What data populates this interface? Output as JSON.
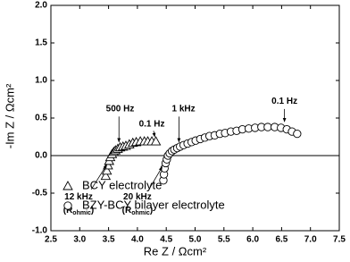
{
  "chart_data": {
    "type": "scatter",
    "x_label": "Re Z  /  Ωcm²",
    "y_label": "-Im Z  /  Ωcm²",
    "xlim": [
      2.5,
      7.5
    ],
    "ylim": [
      -1.0,
      2.0
    ],
    "xticks": [
      2.5,
      {
        "value": 3.0,
        "label": "3.0"
      },
      3.5,
      {
        "value": 4.0,
        "label": "4.0"
      },
      4.5,
      {
        "value": 5.0,
        "label": "5.0"
      },
      5.5,
      {
        "value": 6.0,
        "label": "6.0"
      },
      6.5,
      {
        "value": 7.0,
        "label": "7.0"
      },
      7.5
    ],
    "yticks": [
      {
        "value": -1.0,
        "label": "-1.0"
      },
      -0.5,
      {
        "value": 0.0,
        "label": "0.0"
      },
      0.5,
      {
        "value": 1.0,
        "label": "1.0"
      },
      1.5,
      {
        "value": 2.0,
        "label": "2.0"
      }
    ],
    "zero_line": true,
    "series": [
      {
        "name": "BCY electrolyte",
        "marker": "triangle",
        "color": "#000000",
        "x": [
          3.45,
          3.47,
          3.49,
          3.51,
          3.53,
          3.56,
          3.59,
          3.62,
          3.66,
          3.7,
          3.75,
          3.8,
          3.86,
          3.92,
          3.98,
          4.05,
          4.12,
          4.18,
          4.25,
          4.32
        ],
        "y": [
          -0.27,
          -0.2,
          -0.13,
          -0.07,
          -0.02,
          0.02,
          0.05,
          0.07,
          0.09,
          0.11,
          0.12,
          0.13,
          0.15,
          0.17,
          0.18,
          0.19,
          0.19,
          0.19,
          0.19,
          0.19
        ]
      },
      {
        "name": "BZY-BCY bilayer electrolyte",
        "marker": "circle",
        "color": "#000000",
        "x": [
          4.45,
          4.46,
          4.47,
          4.49,
          4.51,
          4.53,
          4.56,
          4.6,
          4.64,
          4.69,
          4.74,
          4.8,
          4.87,
          4.94,
          5.01,
          5.09,
          5.17,
          5.25,
          5.34,
          5.43,
          5.52,
          5.62,
          5.72,
          5.82,
          5.93,
          6.04,
          6.15,
          6.26,
          6.38,
          6.49,
          6.59,
          6.68,
          6.77
        ],
        "y": [
          -0.33,
          -0.25,
          -0.17,
          -0.1,
          -0.05,
          0.0,
          0.03,
          0.06,
          0.08,
          0.1,
          0.12,
          0.14,
          0.16,
          0.18,
          0.2,
          0.22,
          0.24,
          0.26,
          0.27,
          0.29,
          0.3,
          0.32,
          0.33,
          0.35,
          0.36,
          0.37,
          0.38,
          0.38,
          0.38,
          0.37,
          0.35,
          0.32,
          0.29
        ]
      }
    ],
    "annotations": [
      {
        "text": "500 Hz"
      },
      {
        "text": "0.1 Hz"
      },
      {
        "text": "1 kHz"
      },
      {
        "text": "0.1 Hz"
      },
      {
        "text": "12 kHz",
        "open": "(R",
        "sub": "ohmic",
        "close": ")"
      },
      {
        "text": "20 kHz",
        "open": "(R",
        "sub": "ohmic",
        "close": ")"
      }
    ]
  }
}
